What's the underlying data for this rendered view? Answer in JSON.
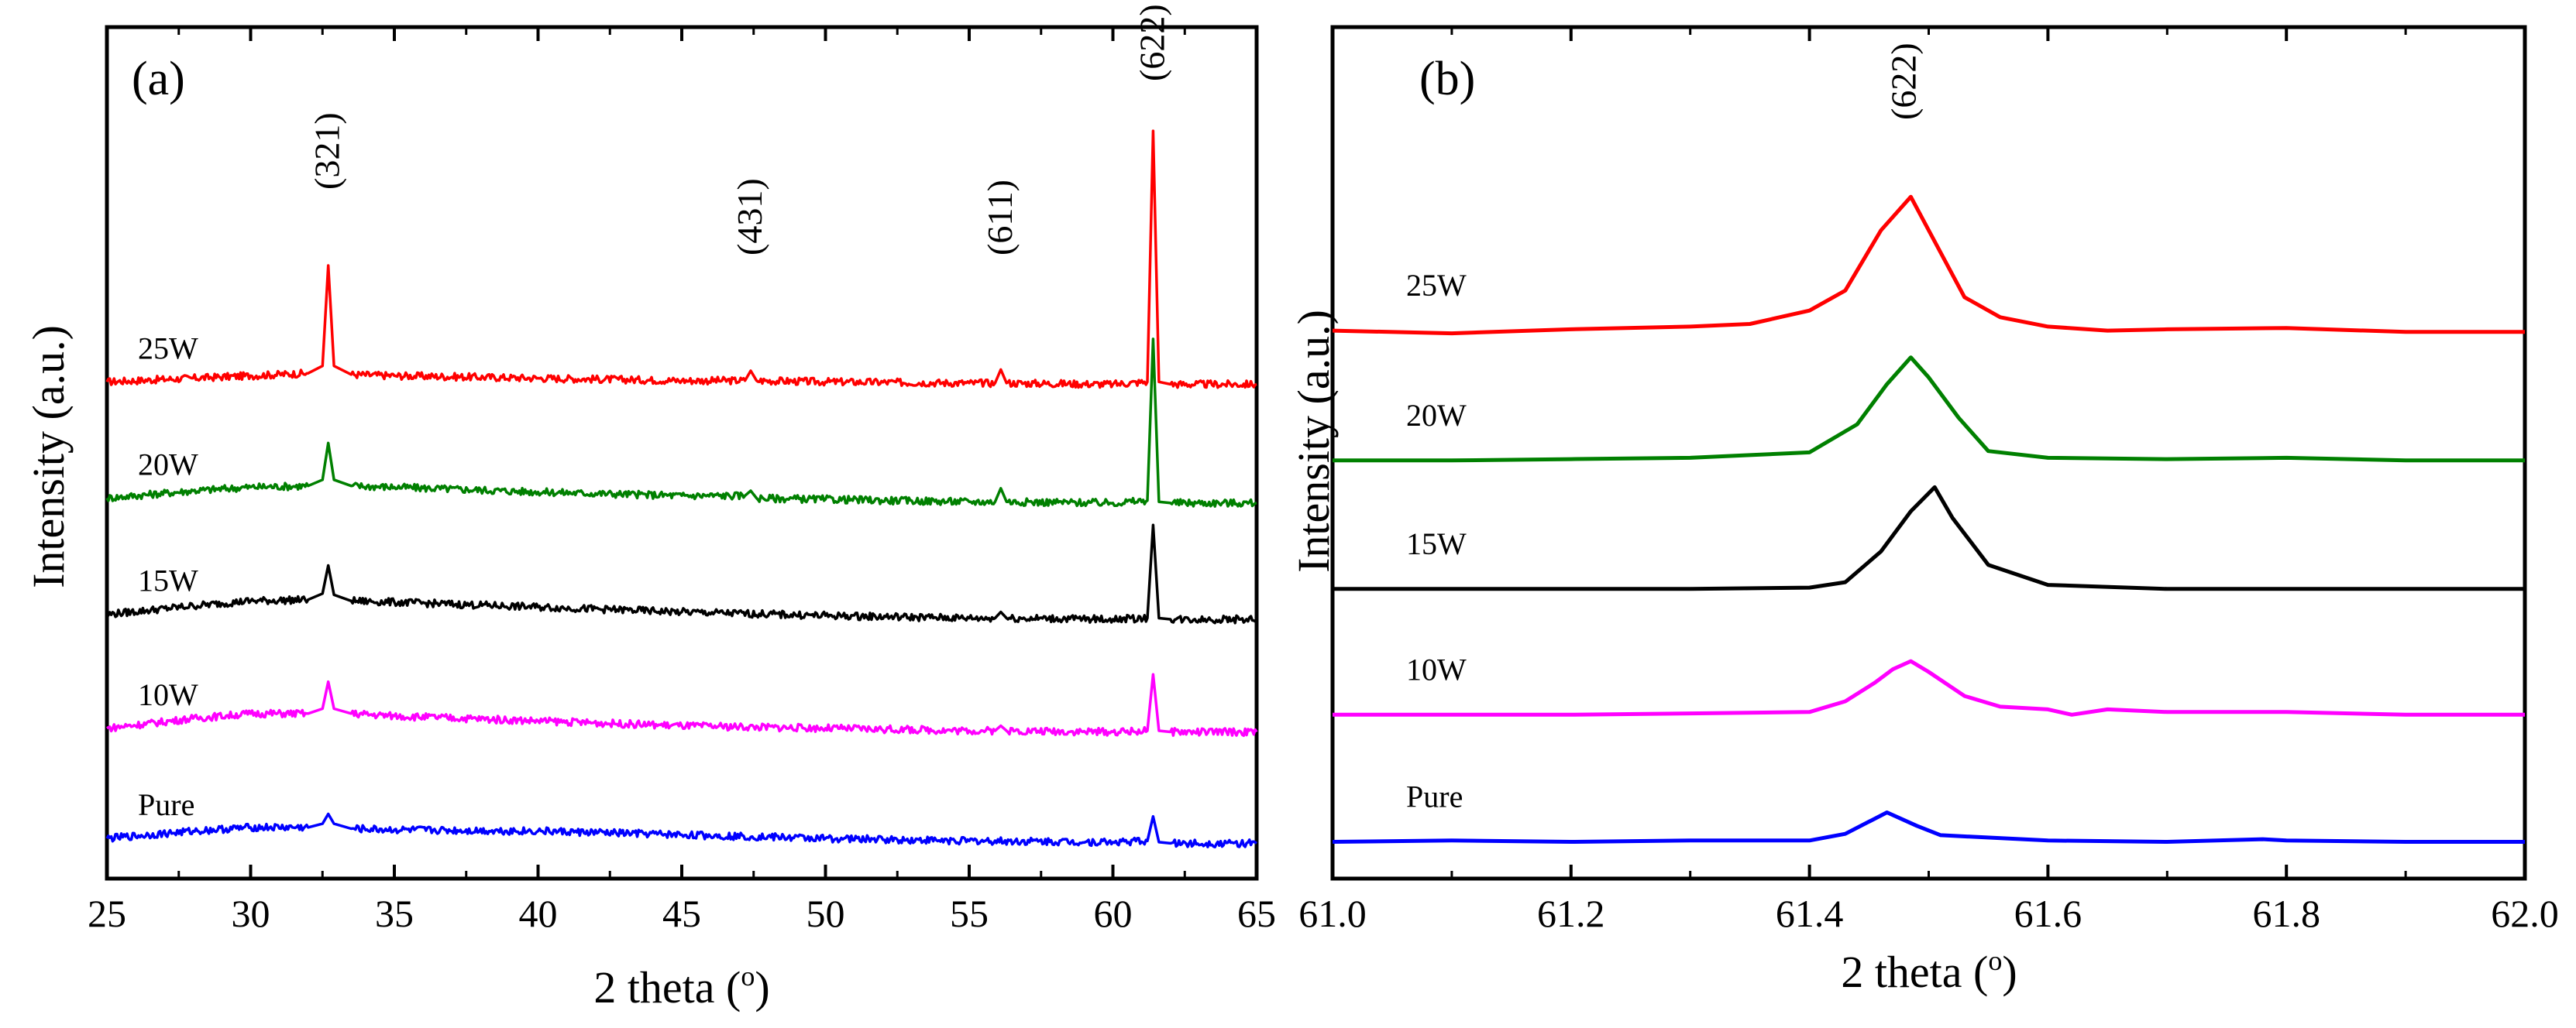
{
  "chart_data": [
    {
      "type": "line",
      "panel_label": "(a)",
      "title": "",
      "xlabel": "2 theta (",
      "xlabel_sup": "o",
      "xlabel_end": ")",
      "ylabel": "Intensity (a.u.)",
      "xlim": [
        25,
        65
      ],
      "xticks": [
        "25",
        "30",
        "35",
        "40",
        "45",
        "50",
        "55",
        "60",
        "65"
      ],
      "grid": false,
      "legend": "none",
      "peak_labels": [
        {
          "text": "(321)",
          "x": 32.7
        },
        {
          "text": "(431)",
          "x": 47.4
        },
        {
          "text": "(611)",
          "x": 56.1
        },
        {
          "text": "(622)",
          "x": 61.4
        }
      ],
      "series": [
        {
          "name": "25W",
          "color": "#ff0000",
          "baseline": 2.95,
          "x": [
            25,
            28,
            30,
            32,
            32.5,
            32.7,
            32.9,
            33.5,
            35,
            40,
            45,
            47.2,
            47.4,
            47.6,
            50,
            55,
            55.9,
            56.1,
            56.3,
            60,
            61.2,
            61.4,
            61.6,
            62,
            65
          ],
          "y": [
            2.95,
            2.98,
            3.0,
            3.02,
            3.08,
            3.9,
            3.08,
            3.01,
            3.0,
            2.98,
            2.96,
            2.96,
            3.04,
            2.96,
            2.95,
            2.94,
            2.94,
            3.05,
            2.94,
            2.93,
            2.95,
            5.0,
            2.95,
            2.93,
            2.93
          ]
        },
        {
          "name": "20W",
          "color": "#008000",
          "baseline": 2.0,
          "x": [
            25,
            28,
            30,
            32,
            32.5,
            32.7,
            32.9,
            33.5,
            35,
            40,
            45,
            47.2,
            47.4,
            47.6,
            50,
            55,
            55.9,
            56.1,
            56.3,
            60,
            61.2,
            61.4,
            61.6,
            62,
            65
          ],
          "y": [
            2.0,
            2.06,
            2.09,
            2.1,
            2.15,
            2.45,
            2.15,
            2.1,
            2.09,
            2.05,
            2.02,
            2.02,
            2.06,
            2.0,
            1.99,
            1.97,
            1.97,
            2.08,
            1.97,
            1.96,
            1.98,
            3.3,
            1.97,
            1.96,
            1.96
          ]
        },
        {
          "name": "15W",
          "color": "#000000",
          "baseline": 1.05,
          "x": [
            25,
            28,
            30,
            32,
            32.5,
            32.7,
            32.9,
            33.5,
            35,
            40,
            45,
            50,
            55,
            55.9,
            56.1,
            56.3,
            60,
            61.2,
            61.4,
            61.6,
            62,
            65
          ],
          "y": [
            1.05,
            1.12,
            1.16,
            1.17,
            1.22,
            1.45,
            1.21,
            1.16,
            1.15,
            1.11,
            1.07,
            1.04,
            1.02,
            1.02,
            1.07,
            1.02,
            1.01,
            1.02,
            1.78,
            1.02,
            1.01,
            1.01
          ]
        },
        {
          "name": "10W",
          "color": "#ff00ff",
          "baseline": 0.12,
          "x": [
            25,
            28,
            30,
            32,
            32.5,
            32.7,
            32.9,
            33.5,
            35,
            40,
            45,
            50,
            55,
            55.9,
            56.1,
            56.3,
            60,
            61.2,
            61.4,
            61.6,
            62,
            65
          ],
          "y": [
            0.12,
            0.2,
            0.24,
            0.24,
            0.28,
            0.5,
            0.28,
            0.24,
            0.22,
            0.18,
            0.14,
            0.12,
            0.1,
            0.1,
            0.14,
            0.1,
            0.09,
            0.1,
            0.56,
            0.1,
            0.09,
            0.09
          ]
        },
        {
          "name": "Pure",
          "color": "#0000ff",
          "baseline": -0.78,
          "x": [
            25,
            28,
            30,
            32,
            32.5,
            32.7,
            32.9,
            33.5,
            35,
            40,
            45,
            50,
            55,
            60,
            61.2,
            61.4,
            61.6,
            62,
            65
          ],
          "y": [
            -0.78,
            -0.72,
            -0.69,
            -0.69,
            -0.66,
            -0.58,
            -0.66,
            -0.7,
            -0.71,
            -0.72,
            -0.75,
            -0.78,
            -0.8,
            -0.81,
            -0.8,
            -0.6,
            -0.81,
            -0.82,
            -0.82
          ]
        }
      ],
      "ylim": [
        -0.95,
        5.5
      ]
    },
    {
      "type": "line",
      "panel_label": "(b)",
      "title": "",
      "xlabel": "2 theta (",
      "xlabel_sup": "o",
      "xlabel_end": ")",
      "ylabel": "Intensity (a.u.)",
      "xlim": [
        61.0,
        62.0
      ],
      "xticks": [
        "61.0",
        "61.2",
        "61.4",
        "61.6",
        "61.8",
        "62.0"
      ],
      "grid": false,
      "legend": "none",
      "peak_labels": [
        {
          "text": "(622)",
          "x": 61.48
        }
      ],
      "series": [
        {
          "name": "25W",
          "color": "#ff0000",
          "x": [
            61.0,
            61.1,
            61.2,
            61.3,
            61.35,
            61.4,
            61.43,
            61.46,
            61.485,
            61.5,
            61.53,
            61.56,
            61.6,
            61.65,
            61.7,
            61.8,
            61.9,
            62.0
          ],
          "y": [
            3.95,
            3.93,
            3.96,
            3.98,
            4.0,
            4.1,
            4.25,
            4.7,
            4.95,
            4.7,
            4.2,
            4.05,
            3.98,
            3.95,
            3.96,
            3.97,
            3.94,
            3.94
          ]
        },
        {
          "name": "20W",
          "color": "#008000",
          "x": [
            61.0,
            61.1,
            61.2,
            61.3,
            61.35,
            61.4,
            61.44,
            61.465,
            61.485,
            61.5,
            61.525,
            61.55,
            61.6,
            61.7,
            61.8,
            61.9,
            62.0
          ],
          "y": [
            2.98,
            2.98,
            2.99,
            3.0,
            3.02,
            3.04,
            3.25,
            3.55,
            3.75,
            3.6,
            3.3,
            3.05,
            3.0,
            2.99,
            3.0,
            2.98,
            2.98
          ]
        },
        {
          "name": "15W",
          "color": "#000000",
          "x": [
            61.0,
            61.1,
            61.2,
            61.3,
            61.4,
            61.43,
            61.46,
            61.485,
            61.505,
            61.52,
            61.55,
            61.6,
            61.7,
            61.8,
            61.9,
            62.0
          ],
          "y": [
            2.02,
            2.02,
            2.02,
            2.02,
            2.03,
            2.07,
            2.3,
            2.6,
            2.78,
            2.55,
            2.2,
            2.05,
            2.02,
            2.02,
            2.02,
            2.02
          ]
        },
        {
          "name": "10W",
          "color": "#ff00ff",
          "x": [
            61.0,
            61.1,
            61.2,
            61.3,
            61.4,
            61.43,
            61.455,
            61.47,
            61.485,
            61.5,
            61.53,
            61.56,
            61.6,
            61.62,
            61.65,
            61.7,
            61.8,
            61.9,
            62.0
          ],
          "y": [
            1.08,
            1.08,
            1.08,
            1.09,
            1.1,
            1.18,
            1.32,
            1.42,
            1.48,
            1.4,
            1.22,
            1.14,
            1.12,
            1.08,
            1.12,
            1.1,
            1.1,
            1.08,
            1.08
          ]
        },
        {
          "name": "Pure",
          "color": "#0000ff",
          "x": [
            61.0,
            61.1,
            61.2,
            61.3,
            61.4,
            61.43,
            61.465,
            61.49,
            61.51,
            61.6,
            61.7,
            61.78,
            61.8,
            61.9,
            62.0
          ],
          "y": [
            0.13,
            0.14,
            0.13,
            0.14,
            0.14,
            0.19,
            0.35,
            0.25,
            0.18,
            0.14,
            0.13,
            0.15,
            0.14,
            0.13,
            0.13
          ]
        }
      ],
      "ylim": [
        0,
        5.9
      ]
    }
  ]
}
